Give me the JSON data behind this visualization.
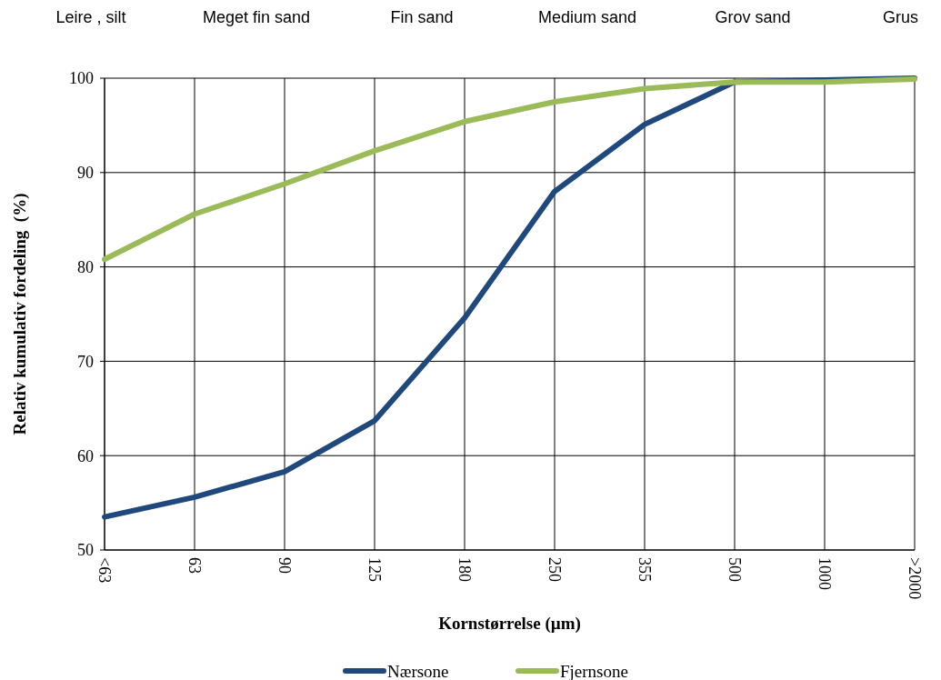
{
  "chart_data": {
    "type": "line",
    "xlabel": "Kornstørrelse (µm)",
    "ylabel": "Relativ kumulativ fordeling  (%)",
    "categories": [
      "<63",
      "63",
      "90",
      "125",
      "180",
      "250",
      "355",
      "500",
      "1000",
      ">2000"
    ],
    "series": [
      {
        "name": "Nærsone",
        "color": "#1f497d",
        "values": [
          53.5,
          55.6,
          58.3,
          63.7,
          74.6,
          88,
          95.1,
          99.6,
          99.8,
          100
        ]
      },
      {
        "name": "Fjernsone",
        "color": "#9bbb59",
        "values": [
          80.8,
          85.6,
          88.8,
          92.3,
          95.4,
          97.5,
          98.9,
          99.6,
          99.6,
          99.9
        ]
      }
    ],
    "ylim": [
      50,
      100
    ],
    "yticks": [
      50,
      60,
      70,
      80,
      90,
      100
    ],
    "grid": true,
    "legend": "bottom",
    "marker": "none",
    "line_style": "solid",
    "annotations": [
      "Leire , silt",
      "Meget fin sand",
      "Fin sand",
      "Medium sand",
      "Grov sand",
      "Grus"
    ]
  }
}
